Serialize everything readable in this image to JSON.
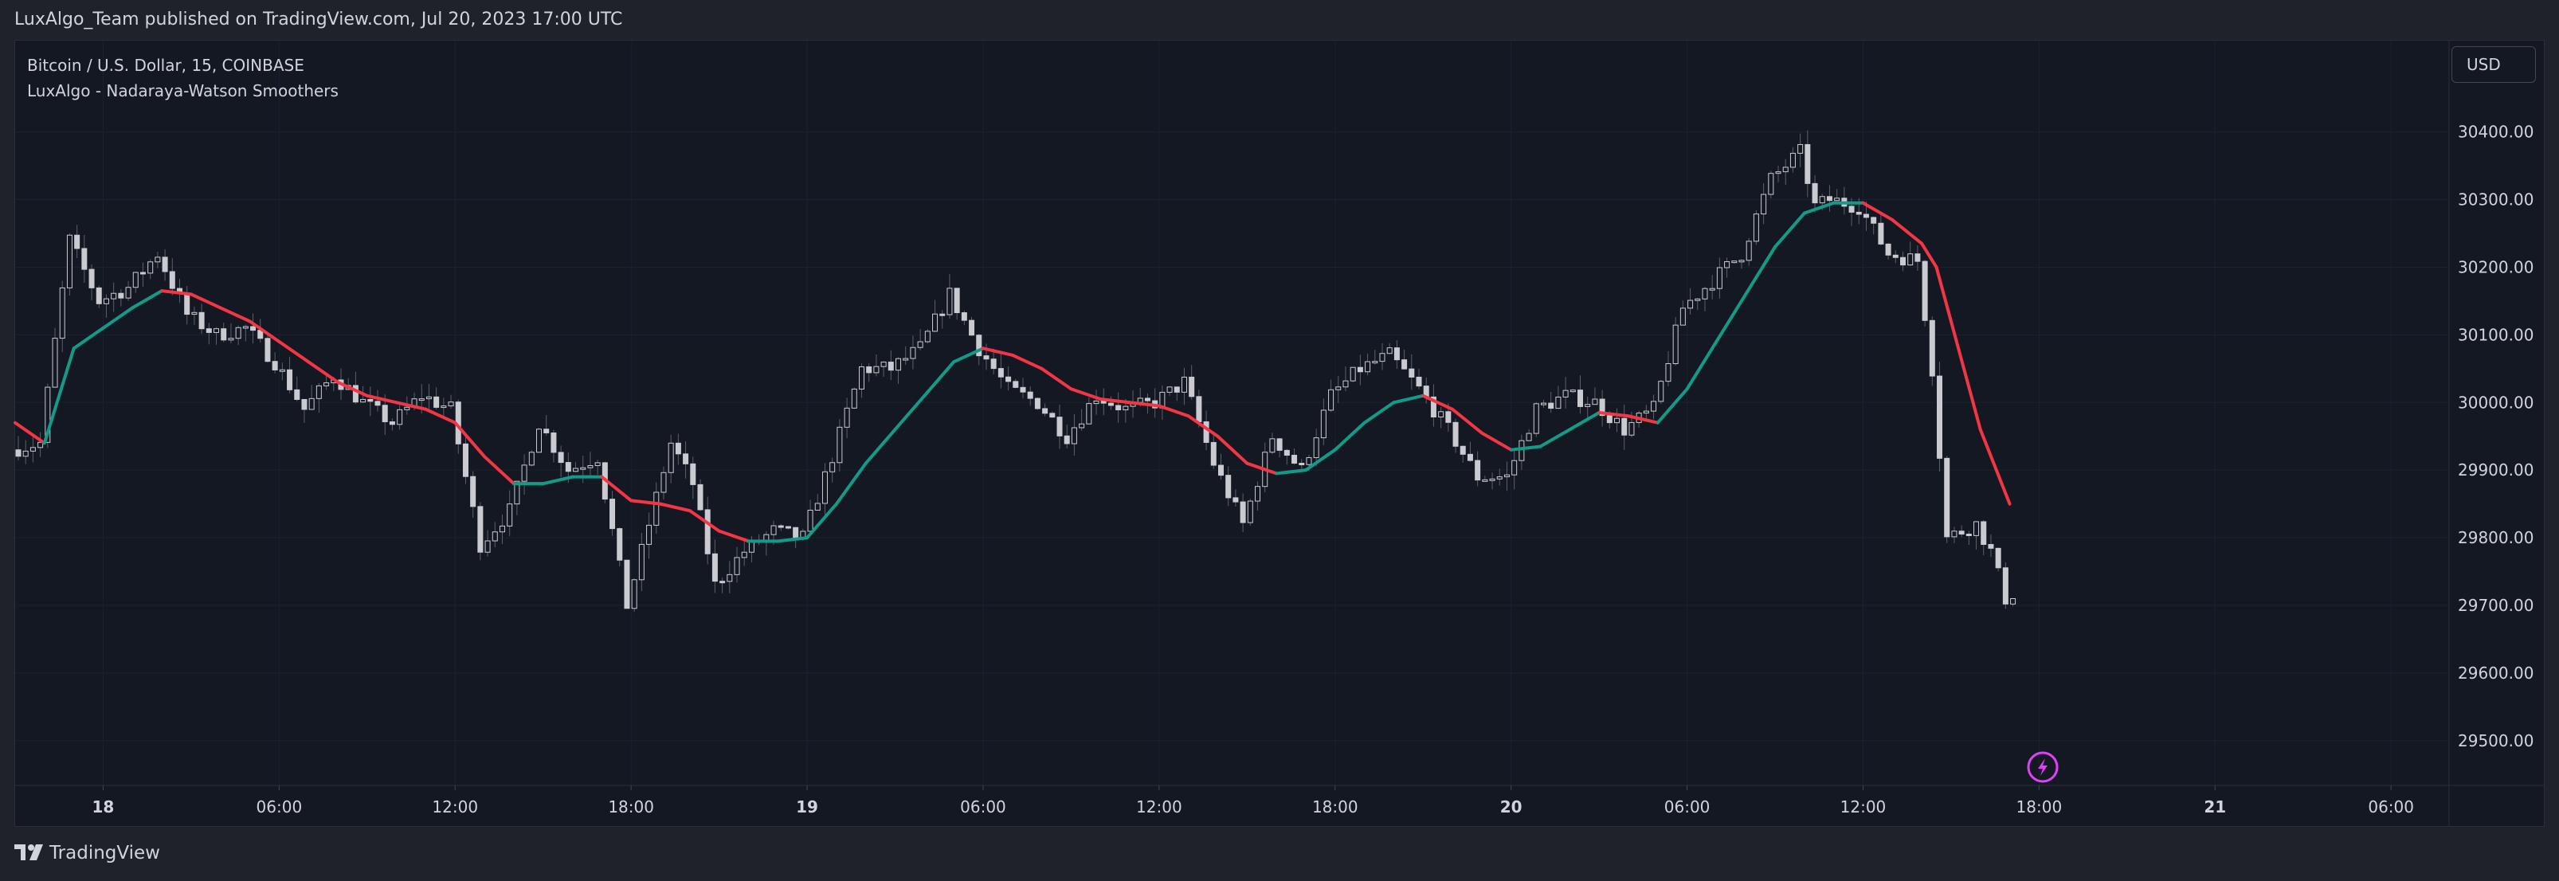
{
  "header": {
    "publish_text": "LuxAlgo_Team published on TradingView.com, Jul 20, 2023 17:00 UTC"
  },
  "legend": {
    "symbol": "Bitcoin / U.S. Dollar, 15, COINBASE",
    "indicator": "LuxAlgo - Nadaraya-Watson Smoothers"
  },
  "currency": "USD",
  "footer": {
    "brand": "TradingView"
  },
  "colors": {
    "background": "#141822",
    "candle_body": "#141822",
    "candle_outline": "#c9cbd1",
    "wick": "#5d606b",
    "smoother_up": "#139b8a",
    "smoother_down": "#f23645",
    "alert_icon": "#e040fb",
    "axis_text": "#d1d4dc"
  },
  "chart_data": {
    "type": "candlestick",
    "symbol": "BTCUSD",
    "timeframe": "15",
    "y_ticks": [
      29500,
      29600,
      29700,
      29800,
      29900,
      30000,
      30100,
      30200,
      30300,
      30400
    ],
    "y_tick_labels": [
      "29500.00",
      "29600.00",
      "29700.00",
      "29800.00",
      "29900.00",
      "30000.00",
      "30100.00",
      "30200.00",
      "30300.00",
      "30400.00"
    ],
    "ylim": [
      29435,
      30535
    ],
    "x_start": "2023-07-17T21:00",
    "x_end": "2023-07-21T07:00",
    "x_ticks": [
      {
        "time": "2023-07-18T00:00",
        "label": "18",
        "bold": true
      },
      {
        "time": "2023-07-18T06:00",
        "label": "06:00",
        "bold": false
      },
      {
        "time": "2023-07-18T12:00",
        "label": "12:00",
        "bold": false
      },
      {
        "time": "2023-07-18T18:00",
        "label": "18:00",
        "bold": false
      },
      {
        "time": "2023-07-19T00:00",
        "label": "19",
        "bold": true
      },
      {
        "time": "2023-07-19T06:00",
        "label": "06:00",
        "bold": false
      },
      {
        "time": "2023-07-19T12:00",
        "label": "12:00",
        "bold": false
      },
      {
        "time": "2023-07-19T18:00",
        "label": "18:00",
        "bold": false
      },
      {
        "time": "2023-07-20T00:00",
        "label": "20",
        "bold": true
      },
      {
        "time": "2023-07-20T06:00",
        "label": "06:00",
        "bold": false
      },
      {
        "time": "2023-07-20T12:00",
        "label": "12:00",
        "bold": false
      },
      {
        "time": "2023-07-20T18:00",
        "label": "18:00",
        "bold": false
      },
      {
        "time": "2023-07-21T00:00",
        "label": "21",
        "bold": true
      },
      {
        "time": "2023-07-21T06:00",
        "label": "06:00",
        "bold": false
      }
    ],
    "price_anchors": [
      {
        "time": "2023-07-17T21:00",
        "price": 29930
      },
      {
        "time": "2023-07-17T22:00",
        "price": 29940
      },
      {
        "time": "2023-07-17T23:00",
        "price": 30240
      },
      {
        "time": "2023-07-18T00:00",
        "price": 30150
      },
      {
        "time": "2023-07-18T01:00",
        "price": 30170
      },
      {
        "time": "2023-07-18T02:00",
        "price": 30220
      },
      {
        "time": "2023-07-18T03:00",
        "price": 30130
      },
      {
        "time": "2023-07-18T04:00",
        "price": 30100
      },
      {
        "time": "2023-07-18T05:00",
        "price": 30110
      },
      {
        "time": "2023-07-18T06:00",
        "price": 30060
      },
      {
        "time": "2023-07-18T07:00",
        "price": 29990
      },
      {
        "time": "2023-07-18T08:00",
        "price": 30040
      },
      {
        "time": "2023-07-18T09:00",
        "price": 30000
      },
      {
        "time": "2023-07-18T10:00",
        "price": 29970
      },
      {
        "time": "2023-07-18T11:00",
        "price": 30010
      },
      {
        "time": "2023-07-18T12:00",
        "price": 29990
      },
      {
        "time": "2023-07-18T13:00",
        "price": 29790
      },
      {
        "time": "2023-07-18T14:00",
        "price": 29840
      },
      {
        "time": "2023-07-18T15:00",
        "price": 29970
      },
      {
        "time": "2023-07-18T16:00",
        "price": 29900
      },
      {
        "time": "2023-07-18T17:00",
        "price": 29920
      },
      {
        "time": "2023-07-18T18:00",
        "price": 29700
      },
      {
        "time": "2023-07-18T18:45",
        "price": 29820
      },
      {
        "time": "2023-07-18T19:30",
        "price": 29940
      },
      {
        "time": "2023-07-18T20:15",
        "price": 29880
      },
      {
        "time": "2023-07-18T21:00",
        "price": 29730
      },
      {
        "time": "2023-07-18T22:00",
        "price": 29780
      },
      {
        "time": "2023-07-18T23:00",
        "price": 29810
      },
      {
        "time": "2023-07-19T00:00",
        "price": 29800
      },
      {
        "time": "2023-07-19T01:00",
        "price": 29920
      },
      {
        "time": "2023-07-19T02:00",
        "price": 30050
      },
      {
        "time": "2023-07-19T03:00",
        "price": 30050
      },
      {
        "time": "2023-07-19T04:00",
        "price": 30080
      },
      {
        "time": "2023-07-19T05:00",
        "price": 30160
      },
      {
        "time": "2023-07-19T06:00",
        "price": 30080
      },
      {
        "time": "2023-07-19T07:00",
        "price": 30020
      },
      {
        "time": "2023-07-19T08:00",
        "price": 30000
      },
      {
        "time": "2023-07-19T09:00",
        "price": 29950
      },
      {
        "time": "2023-07-19T10:00",
        "price": 30010
      },
      {
        "time": "2023-07-19T11:00",
        "price": 29990
      },
      {
        "time": "2023-07-19T12:00",
        "price": 30000
      },
      {
        "time": "2023-07-19T13:00",
        "price": 30030
      },
      {
        "time": "2023-07-19T14:00",
        "price": 29910
      },
      {
        "time": "2023-07-19T15:00",
        "price": 29820
      },
      {
        "time": "2023-07-19T16:00",
        "price": 29950
      },
      {
        "time": "2023-07-19T17:00",
        "price": 29900
      },
      {
        "time": "2023-07-19T18:00",
        "price": 30010
      },
      {
        "time": "2023-07-19T19:00",
        "price": 30050
      },
      {
        "time": "2023-07-19T20:00",
        "price": 30070
      },
      {
        "time": "2023-07-19T21:00",
        "price": 30020
      },
      {
        "time": "2023-07-19T22:00",
        "price": 29960
      },
      {
        "time": "2023-07-19T23:00",
        "price": 29890
      },
      {
        "time": "2023-07-20T00:00",
        "price": 29890
      },
      {
        "time": "2023-07-20T01:00",
        "price": 29990
      },
      {
        "time": "2023-07-20T02:00",
        "price": 30010
      },
      {
        "time": "2023-07-20T03:00",
        "price": 30000
      },
      {
        "time": "2023-07-20T04:00",
        "price": 29960
      },
      {
        "time": "2023-07-20T05:00",
        "price": 29990
      },
      {
        "time": "2023-07-20T06:00",
        "price": 30140
      },
      {
        "time": "2023-07-20T07:00",
        "price": 30180
      },
      {
        "time": "2023-07-20T08:00",
        "price": 30220
      },
      {
        "time": "2023-07-20T09:00",
        "price": 30330
      },
      {
        "time": "2023-07-20T10:00",
        "price": 30370
      },
      {
        "time": "2023-07-20T10:30",
        "price": 30290
      },
      {
        "time": "2023-07-20T11:00",
        "price": 30300
      },
      {
        "time": "2023-07-20T12:00",
        "price": 30290
      },
      {
        "time": "2023-07-20T13:00",
        "price": 30220
      },
      {
        "time": "2023-07-20T14:00",
        "price": 30210
      },
      {
        "time": "2023-07-20T14:30",
        "price": 30050
      },
      {
        "time": "2023-07-20T15:00",
        "price": 29800
      },
      {
        "time": "2023-07-20T16:00",
        "price": 29820
      },
      {
        "time": "2023-07-20T16:30",
        "price": 29780
      },
      {
        "time": "2023-07-20T17:00",
        "price": 29710
      }
    ],
    "smoother": [
      {
        "time": "2023-07-17T21:00",
        "price": 29970
      },
      {
        "time": "2023-07-17T22:00",
        "price": 29940
      },
      {
        "time": "2023-07-17T23:00",
        "price": 30080
      },
      {
        "time": "2023-07-18T00:00",
        "price": 30110
      },
      {
        "time": "2023-07-18T01:00",
        "price": 30140
      },
      {
        "time": "2023-07-18T02:00",
        "price": 30165
      },
      {
        "time": "2023-07-18T03:00",
        "price": 30160
      },
      {
        "time": "2023-07-18T04:00",
        "price": 30140
      },
      {
        "time": "2023-07-18T05:00",
        "price": 30120
      },
      {
        "time": "2023-07-18T06:00",
        "price": 30090
      },
      {
        "time": "2023-07-18T07:00",
        "price": 30060
      },
      {
        "time": "2023-07-18T08:00",
        "price": 30030
      },
      {
        "time": "2023-07-18T09:00",
        "price": 30010
      },
      {
        "time": "2023-07-18T10:00",
        "price": 30000
      },
      {
        "time": "2023-07-18T11:00",
        "price": 29990
      },
      {
        "time": "2023-07-18T12:00",
        "price": 29970
      },
      {
        "time": "2023-07-18T13:00",
        "price": 29920
      },
      {
        "time": "2023-07-18T14:00",
        "price": 29880
      },
      {
        "time": "2023-07-18T15:00",
        "price": 29880
      },
      {
        "time": "2023-07-18T16:00",
        "price": 29890
      },
      {
        "time": "2023-07-18T17:00",
        "price": 29890
      },
      {
        "time": "2023-07-18T18:00",
        "price": 29855
      },
      {
        "time": "2023-07-18T19:00",
        "price": 29850
      },
      {
        "time": "2023-07-18T20:00",
        "price": 29840
      },
      {
        "time": "2023-07-18T21:00",
        "price": 29810
      },
      {
        "time": "2023-07-18T22:00",
        "price": 29795
      },
      {
        "time": "2023-07-18T23:00",
        "price": 29795
      },
      {
        "time": "2023-07-19T00:00",
        "price": 29800
      },
      {
        "time": "2023-07-19T01:00",
        "price": 29850
      },
      {
        "time": "2023-07-19T02:00",
        "price": 29910
      },
      {
        "time": "2023-07-19T03:00",
        "price": 29960
      },
      {
        "time": "2023-07-19T04:00",
        "price": 30010
      },
      {
        "time": "2023-07-19T05:00",
        "price": 30060
      },
      {
        "time": "2023-07-19T06:00",
        "price": 30080
      },
      {
        "time": "2023-07-19T07:00",
        "price": 30070
      },
      {
        "time": "2023-07-19T08:00",
        "price": 30050
      },
      {
        "time": "2023-07-19T09:00",
        "price": 30020
      },
      {
        "time": "2023-07-19T10:00",
        "price": 30005
      },
      {
        "time": "2023-07-19T11:00",
        "price": 30000
      },
      {
        "time": "2023-07-19T12:00",
        "price": 29995
      },
      {
        "time": "2023-07-19T13:00",
        "price": 29980
      },
      {
        "time": "2023-07-19T14:00",
        "price": 29950
      },
      {
        "time": "2023-07-19T15:00",
        "price": 29910
      },
      {
        "time": "2023-07-19T16:00",
        "price": 29895
      },
      {
        "time": "2023-07-19T17:00",
        "price": 29900
      },
      {
        "time": "2023-07-19T18:00",
        "price": 29930
      },
      {
        "time": "2023-07-19T19:00",
        "price": 29970
      },
      {
        "time": "2023-07-19T20:00",
        "price": 30000
      },
      {
        "time": "2023-07-19T21:00",
        "price": 30010
      },
      {
        "time": "2023-07-19T22:00",
        "price": 29990
      },
      {
        "time": "2023-07-19T23:00",
        "price": 29955
      },
      {
        "time": "2023-07-20T00:00",
        "price": 29930
      },
      {
        "time": "2023-07-20T01:00",
        "price": 29935
      },
      {
        "time": "2023-07-20T02:00",
        "price": 29960
      },
      {
        "time": "2023-07-20T03:00",
        "price": 29985
      },
      {
        "time": "2023-07-20T04:00",
        "price": 29980
      },
      {
        "time": "2023-07-20T05:00",
        "price": 29970
      },
      {
        "time": "2023-07-20T06:00",
        "price": 30020
      },
      {
        "time": "2023-07-20T07:00",
        "price": 30090
      },
      {
        "time": "2023-07-20T08:00",
        "price": 30160
      },
      {
        "time": "2023-07-20T09:00",
        "price": 30230
      },
      {
        "time": "2023-07-20T10:00",
        "price": 30280
      },
      {
        "time": "2023-07-20T11:00",
        "price": 30295
      },
      {
        "time": "2023-07-20T12:00",
        "price": 30295
      },
      {
        "time": "2023-07-20T13:00",
        "price": 30270
      },
      {
        "time": "2023-07-20T14:00",
        "price": 30235
      },
      {
        "time": "2023-07-20T14:30",
        "price": 30200
      },
      {
        "time": "2023-07-20T15:00",
        "price": 30120
      },
      {
        "time": "2023-07-20T16:00",
        "price": 29960
      },
      {
        "time": "2023-07-20T17:00",
        "price": 29850
      }
    ]
  }
}
